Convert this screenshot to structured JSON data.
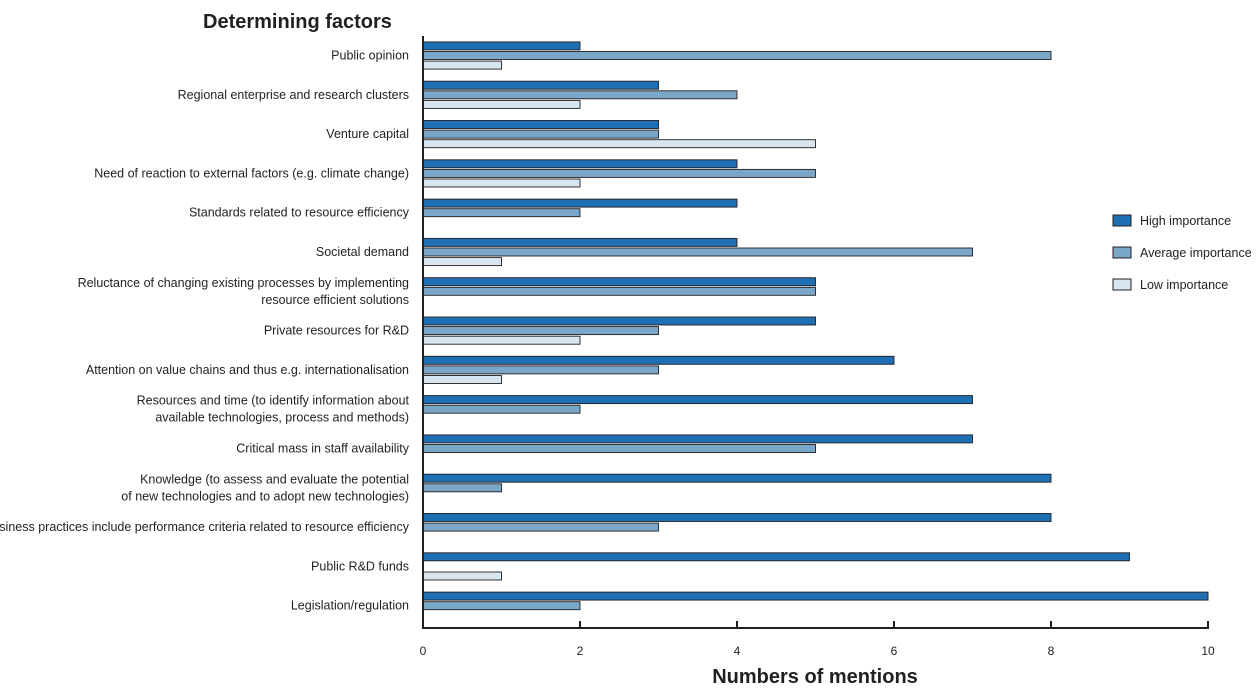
{
  "chart_data": {
    "type": "bar",
    "orientation": "horizontal",
    "title": "",
    "ylabel": "Determining factors",
    "xlabel": "Numbers of mentions",
    "xlim": [
      0,
      10
    ],
    "xticks": [
      0,
      2,
      4,
      6,
      8,
      10
    ],
    "grid": false,
    "legend_position": "right",
    "categories": [
      [
        "Public opinion"
      ],
      [
        "Regional enterprise and research clusters"
      ],
      [
        "Venture capital"
      ],
      [
        "Need of reaction to external factors (e.g. climate change)"
      ],
      [
        "Standards related to resource efficiency"
      ],
      [
        "Societal demand"
      ],
      [
        "Reluctance of changing existing processes by implementing",
        "resource efficient solutions"
      ],
      [
        "Private resources for R&D"
      ],
      [
        "Attention on value chains and thus e.g. internationalisation"
      ],
      [
        "Resources and time (to identify information about",
        "available technologies, process and methods)"
      ],
      [
        "Critical mass in staff availability"
      ],
      [
        "Knowledge (to assess and evaluate the potential",
        "of new technologies and to adopt new technologies)"
      ],
      [
        "Business practices include performance criteria related to resource efficiency"
      ],
      [
        "Public R&D funds"
      ],
      [
        "Legislation/regulation"
      ]
    ],
    "series": [
      {
        "name": "High importance",
        "color": "#1f6fb4",
        "values": [
          2,
          3,
          3,
          4,
          4,
          4,
          5,
          5,
          6,
          7,
          7,
          8,
          8,
          9,
          10
        ]
      },
      {
        "name": "Average importance",
        "color": "#7aa6c8",
        "values": [
          8,
          4,
          3,
          5,
          2,
          7,
          5,
          3,
          3,
          2,
          5,
          1,
          3,
          0,
          2
        ]
      },
      {
        "name": "Low importance",
        "color": "#d7e6f1",
        "values": [
          1,
          2,
          5,
          2,
          0,
          1,
          0,
          2,
          1,
          0,
          0,
          0,
          0,
          1,
          0
        ]
      }
    ]
  }
}
